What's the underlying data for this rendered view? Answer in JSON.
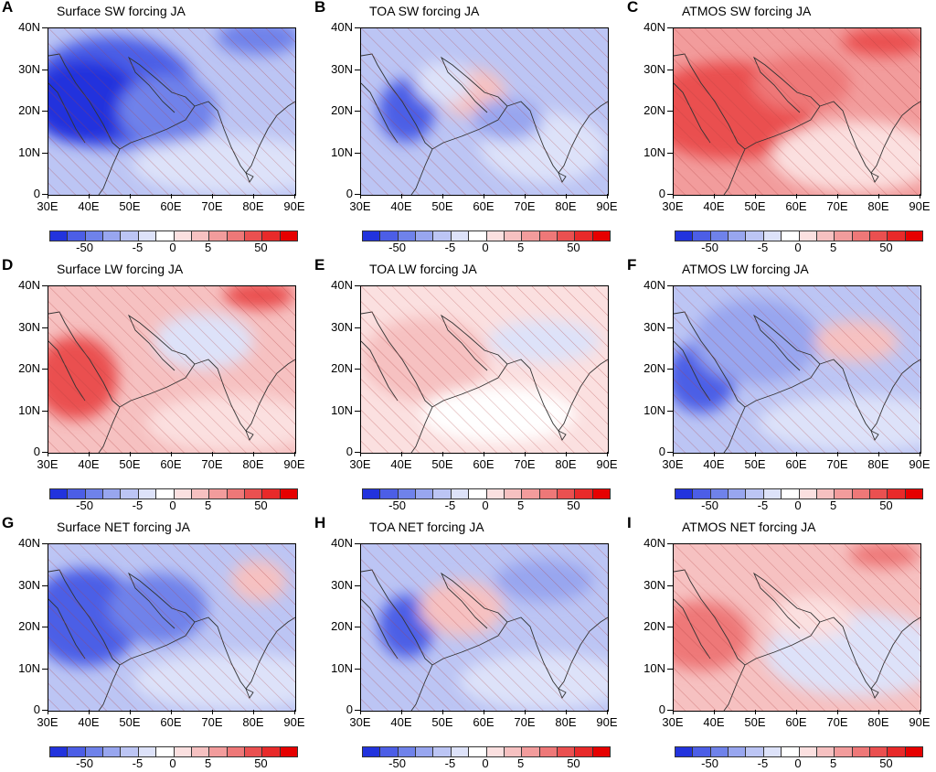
{
  "panels": [
    {
      "letter": "A",
      "title": "Surface SW forcing JA",
      "theme": "sfc_sw"
    },
    {
      "letter": "B",
      "title": "TOA SW forcing JA",
      "theme": "toa_sw"
    },
    {
      "letter": "C",
      "title": "ATMOS SW forcing JA",
      "theme": "atm_sw"
    },
    {
      "letter": "D",
      "title": "Surface LW forcing JA",
      "theme": "sfc_lw"
    },
    {
      "letter": "E",
      "title": "TOA LW forcing JA",
      "theme": "toa_lw"
    },
    {
      "letter": "F",
      "title": "ATMOS LW forcing JA",
      "theme": "atm_lw"
    },
    {
      "letter": "G",
      "title": "Surface NET forcing JA",
      "theme": "sfc_net"
    },
    {
      "letter": "H",
      "title": "TOA NET forcing JA",
      "theme": "toa_net"
    },
    {
      "letter": "I",
      "title": "ATMOS NET forcing JA",
      "theme": "atm_net"
    }
  ],
  "lat_ticks": [
    "40N",
    "30N",
    "20N",
    "10N",
    "0"
  ],
  "lon_ticks": [
    "30E",
    "40E",
    "50E",
    "60E",
    "70E",
    "80E",
    "90E"
  ],
  "colorbar": {
    "labels": [
      "-50",
      "-5",
      "0",
      "5",
      "50"
    ],
    "colors": [
      "#2233dd",
      "#4c5ee6",
      "#6f82ea",
      "#98a6ef",
      "#bcc5f4",
      "#dde2f9",
      "#ffffff",
      "#fbe0e0",
      "#f6c1c1",
      "#f29c9c",
      "#ee7878",
      "#ea5050",
      "#e82a2a",
      "#e60000"
    ]
  }
}
